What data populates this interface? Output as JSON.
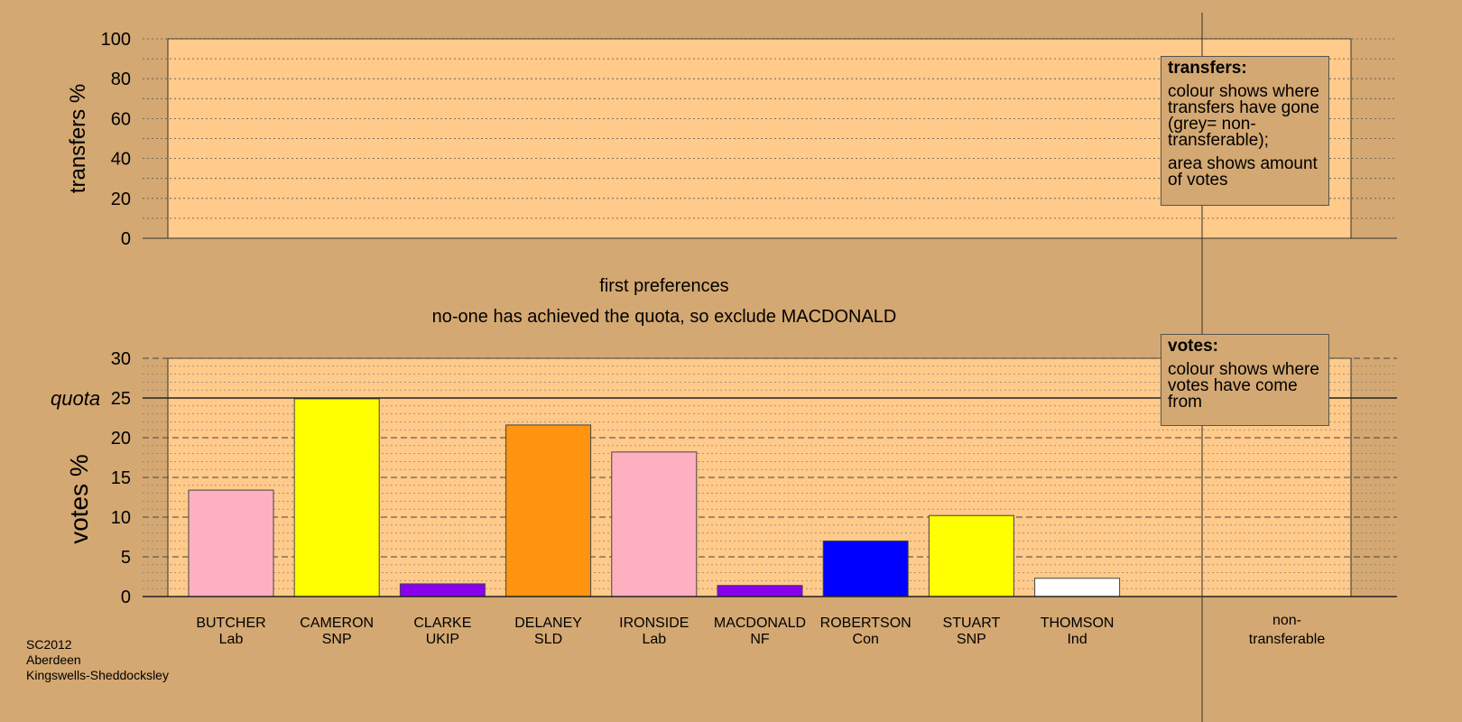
{
  "chart_data": [
    {
      "type": "area",
      "ylabel": "transfers %",
      "ylim": [
        0,
        100
      ],
      "yticks": [
        0,
        20,
        40,
        60,
        80,
        100
      ],
      "grid": true,
      "series": [],
      "legend": {
        "placement": "top-right",
        "title": "transfers:",
        "lines": [
          "colour shows where transfers have gone (grey= non-transferable);",
          "area shows amount of votes"
        ]
      }
    },
    {
      "type": "bar",
      "title": "first preferences",
      "subtitle": "no-one has achieved the quota, so exclude MACDONALD",
      "ylabel": "votes %",
      "ylim": [
        0,
        30
      ],
      "yticks": [
        0,
        5,
        10,
        15,
        20,
        25,
        30
      ],
      "grid": true,
      "quota": 25,
      "quota_label": "quota",
      "categories": [
        {
          "name": "BUTCHER",
          "party": "Lab",
          "value": 13.4,
          "color": "#ffb0c0"
        },
        {
          "name": "CAMERON",
          "party": "SNP",
          "value": 24.9,
          "color": "#ffff00"
        },
        {
          "name": "CLARKE",
          "party": "UKIP",
          "value": 1.6,
          "color": "#8800ee"
        },
        {
          "name": "DELANEY",
          "party": "SLD",
          "value": 21.6,
          "color": "#ff9410"
        },
        {
          "name": "IRONSIDE",
          "party": "Lab",
          "value": 18.2,
          "color": "#ffb0c0"
        },
        {
          "name": "MACDONALD",
          "party": "NF",
          "value": 1.4,
          "color": "#8800ee"
        },
        {
          "name": "ROBERTSON",
          "party": "Con",
          "value": 7.0,
          "color": "#0000ff"
        },
        {
          "name": "STUART",
          "party": "SNP",
          "value": 10.2,
          "color": "#ffff00"
        },
        {
          "name": "THOMSON",
          "party": "Ind",
          "value": 2.3,
          "color": "#ffffff"
        }
      ],
      "nontransferable": {
        "label_1": "non-",
        "label_2": "transferable",
        "value": 0
      },
      "legend": {
        "placement": "top-right",
        "title": "votes:",
        "lines": [
          "colour shows where votes have come from"
        ]
      }
    }
  ],
  "meta": {
    "line1": "SC2012",
    "line2": "Aberdeen",
    "line3": "Kingswells-Sheddocksley"
  },
  "colors": {
    "background": "#d4a872",
    "plot_fill": "#ffca8a"
  }
}
